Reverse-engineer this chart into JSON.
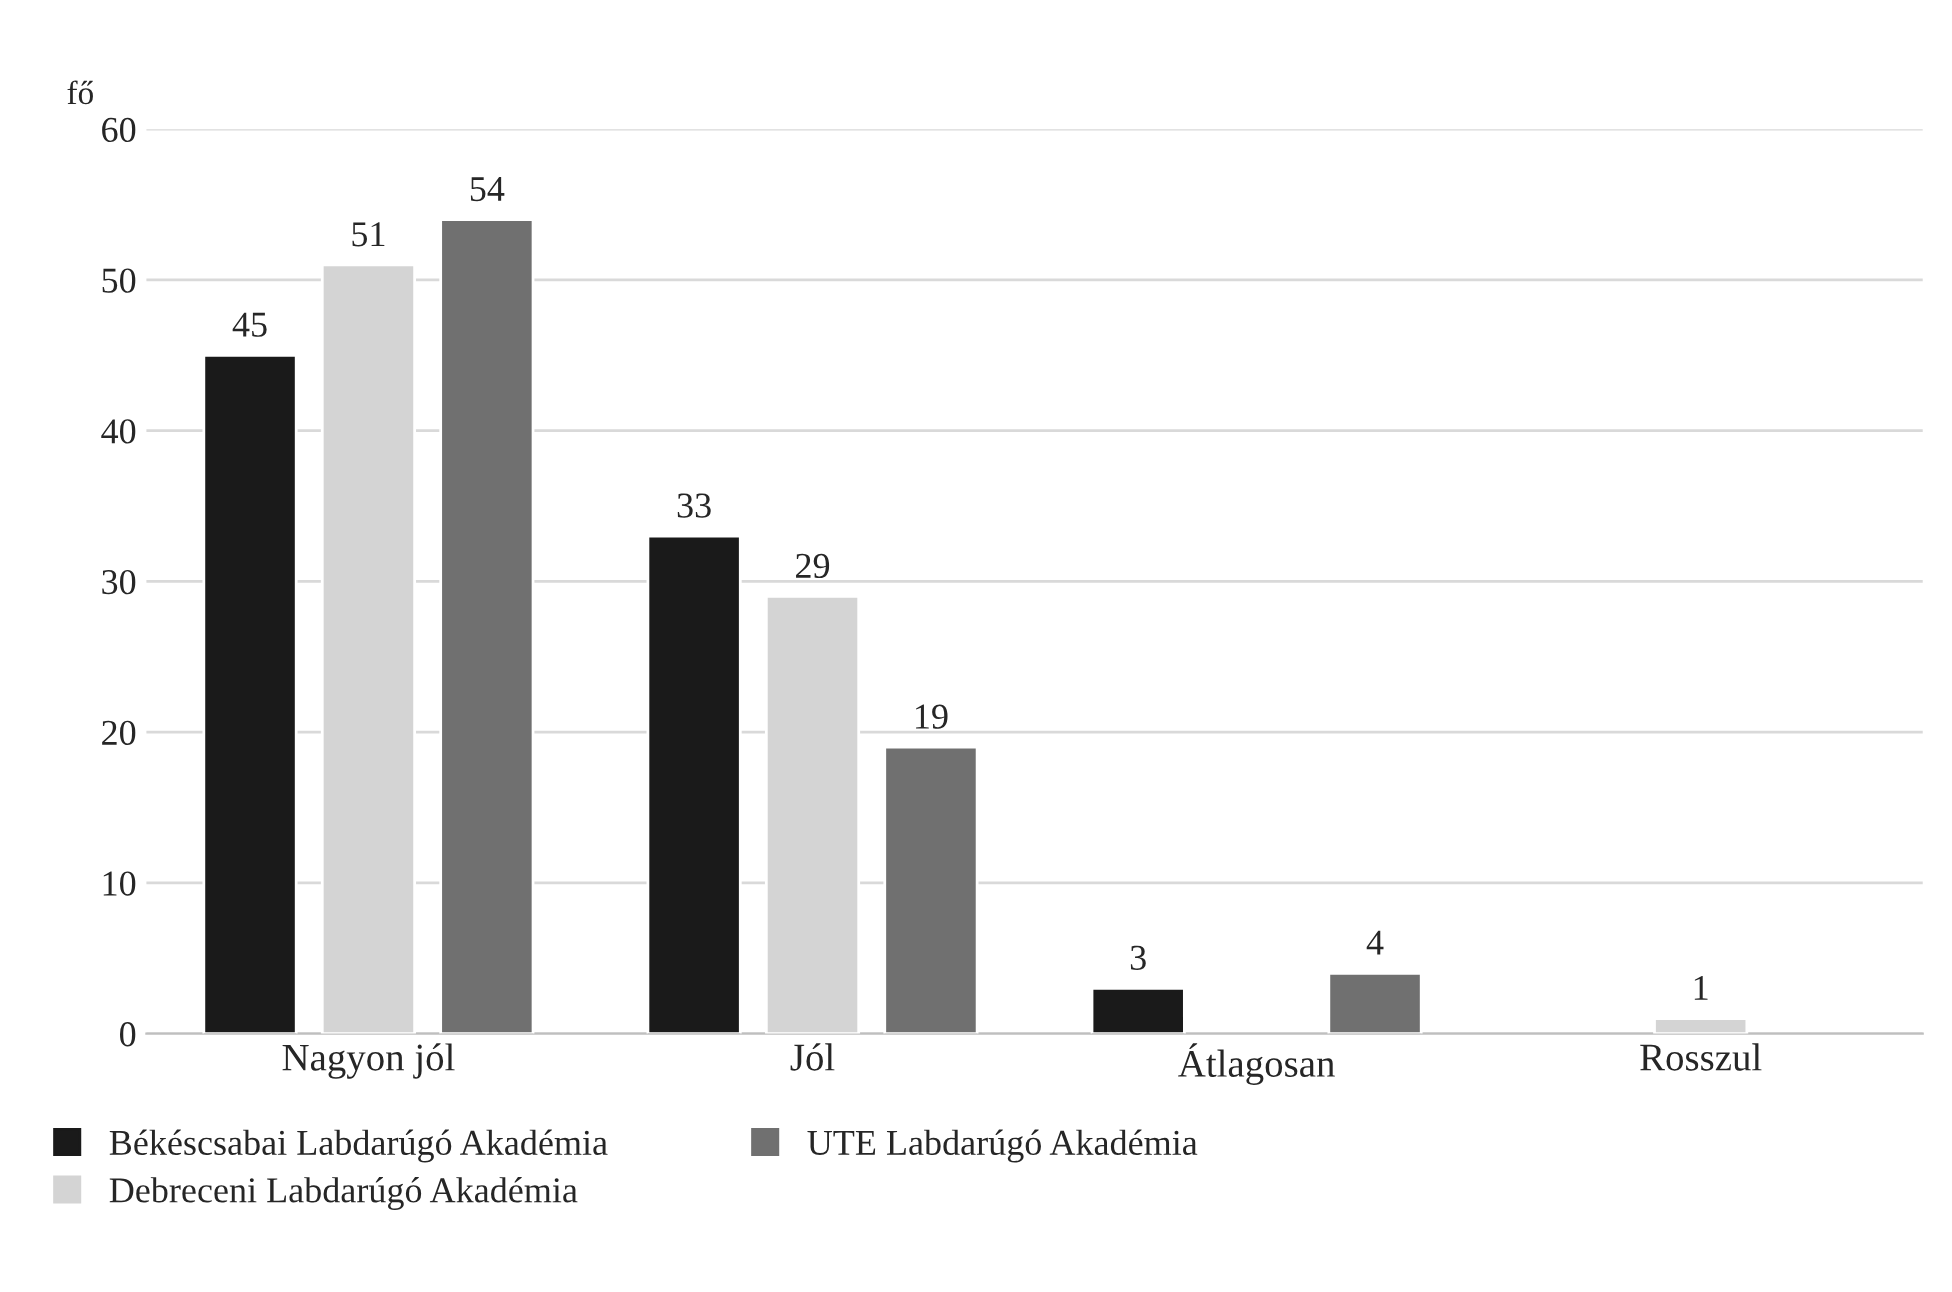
{
  "chart_data": {
    "type": "bar",
    "ylabel": "fő",
    "categories": [
      "Nagyon jól",
      "Jól",
      "Átlagosan",
      "Rosszul"
    ],
    "series": [
      {
        "name": "Békéscsabai Labdarúgó Akadémia",
        "color": "#1a1a1a",
        "values": [
          45,
          33,
          3,
          null
        ],
        "value_labels": [
          "45",
          "33",
          "3",
          null
        ]
      },
      {
        "name": "Debreceni Labdarúgó Akadémia",
        "color": "#d4d4d4",
        "values": [
          51,
          29,
          null,
          1
        ],
        "value_labels": [
          "51",
          "29",
          null,
          "1"
        ]
      },
      {
        "name": "UTE Labdarúgó Akadémia",
        "color": "#707070",
        "values": [
          54,
          19,
          4,
          null
        ],
        "value_labels": [
          "54",
          "19",
          "4",
          null
        ]
      }
    ],
    "ylim": [
      0,
      60
    ],
    "yticks": [
      0,
      10,
      20,
      30,
      40,
      50,
      60
    ],
    "grid": "y",
    "legend": "bottom"
  }
}
